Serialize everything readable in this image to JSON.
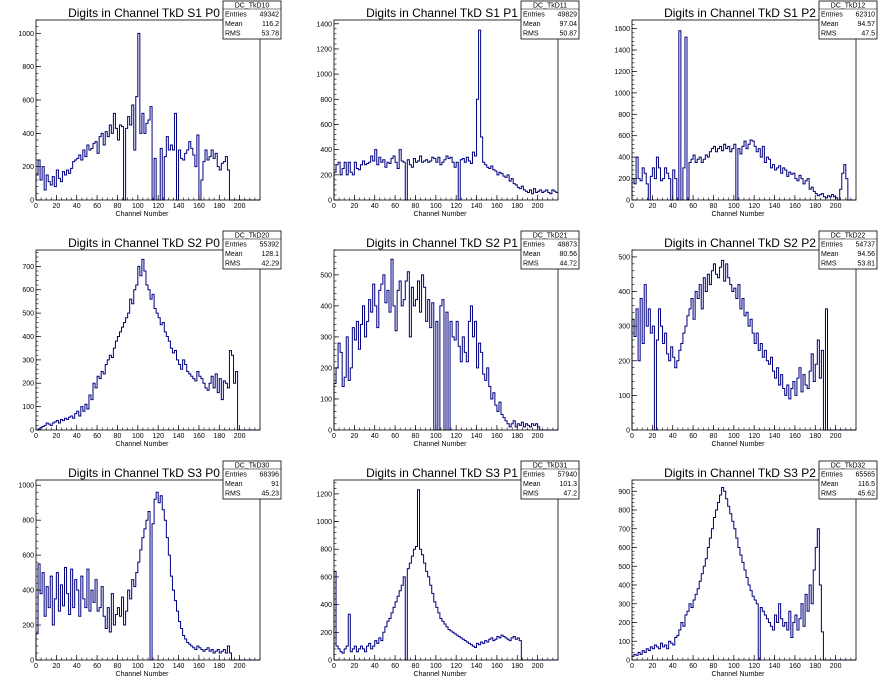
{
  "chart_data": [
    {
      "type": "histogram",
      "title": "Digits in Channel TkD S1 P0",
      "xlabel": "Channel Number",
      "xlim": [
        0,
        220
      ],
      "ylim": [
        0,
        1080
      ],
      "xticks": [
        0,
        20,
        40,
        60,
        80,
        100,
        120,
        140,
        160,
        180,
        200
      ],
      "yticks": [
        0,
        200,
        400,
        600,
        800,
        1000
      ],
      "stats": {
        "name": "DC_TkD10",
        "entries": "49342",
        "mean": "116.2",
        "rms": "53.78"
      },
      "bin_width": 2,
      "values": [
        150,
        240,
        120,
        200,
        60,
        150,
        110,
        90,
        140,
        80,
        180,
        130,
        110,
        170,
        150,
        180,
        160,
        190,
        230,
        240,
        250,
        270,
        240,
        300,
        260,
        330,
        300,
        310,
        340,
        350,
        280,
        380,
        400,
        330,
        410,
        380,
        450,
        400,
        520,
        430,
        360,
        450,
        440,
        0,
        430,
        500,
        450,
        570,
        300,
        620,
        1000,
        400,
        520,
        400,
        460,
        480,
        560,
        0,
        250,
        0,
        0,
        310,
        0,
        260,
        380,
        300,
        330,
        300,
        520,
        0,
        300,
        250,
        240,
        280,
        300,
        350,
        310,
        270,
        200,
        390,
        0,
        120,
        230,
        300,
        240,
        260,
        300,
        250,
        280,
        200,
        180,
        220,
        230,
        260,
        180,
        0,
        0,
        0,
        0,
        0,
        0,
        0,
        0,
        0,
        0,
        0,
        0,
        0,
        0,
        0
      ]
    },
    {
      "type": "histogram",
      "title": "Digits in Channel TkD S1 P1",
      "xlabel": "Channel Number",
      "xlim": [
        0,
        220
      ],
      "ylim": [
        0,
        1430
      ],
      "xticks": [
        0,
        20,
        40,
        60,
        80,
        100,
        120,
        140,
        160,
        180,
        200
      ],
      "yticks": [
        0,
        200,
        400,
        600,
        800,
        1000,
        1200,
        1400
      ],
      "stats": {
        "name": "DC_TkD11",
        "entries": "49829",
        "mean": "97.04",
        "rms": "50.87"
      },
      "bin_width": 2,
      "values": [
        220,
        280,
        300,
        200,
        250,
        300,
        200,
        300,
        220,
        200,
        300,
        250,
        240,
        280,
        310,
        280,
        290,
        300,
        350,
        310,
        400,
        280,
        340,
        300,
        320,
        260,
        300,
        290,
        330,
        350,
        300,
        250,
        400,
        310,
        300,
        0,
        320,
        280,
        260,
        330,
        300,
        310,
        350,
        300,
        310,
        320,
        300,
        310,
        340,
        330,
        300,
        340,
        280,
        300,
        320,
        350,
        330,
        340,
        300,
        260,
        300,
        0,
        320,
        330,
        300,
        340,
        310,
        290,
        380,
        350,
        800,
        1350,
        500,
        300,
        280,
        260,
        250,
        270,
        240,
        230,
        200,
        220,
        210,
        190,
        180,
        200,
        150,
        170,
        130,
        120,
        100,
        90,
        110,
        80,
        70,
        60,
        80,
        50,
        90,
        60,
        70,
        80,
        60,
        70,
        80,
        60,
        50,
        80,
        70,
        60
      ]
    },
    {
      "type": "histogram",
      "title": "Digits in Channel TkD S1 P2",
      "xlabel": "Channel Number",
      "xlim": [
        0,
        220
      ],
      "ylim": [
        0,
        1680
      ],
      "xticks": [
        0,
        20,
        40,
        60,
        80,
        100,
        120,
        140,
        160,
        180,
        200
      ],
      "yticks": [
        0,
        200,
        400,
        600,
        800,
        1000,
        1200,
        1400,
        1600
      ],
      "stats": {
        "name": "DC_TkD12",
        "entries": "62310",
        "mean": "94.57",
        "rms": "47.5"
      },
      "bin_width": 2,
      "values": [
        200,
        150,
        400,
        200,
        180,
        300,
        250,
        150,
        0,
        220,
        300,
        200,
        400,
        300,
        180,
        200,
        300,
        250,
        200,
        0,
        280,
        200,
        0,
        1580,
        0,
        300,
        1520,
        0,
        350,
        380,
        420,
        350,
        380,
        400,
        350,
        380,
        420,
        400,
        450,
        480,
        500,
        450,
        480,
        500,
        460,
        520,
        480,
        500,
        450,
        480,
        520,
        0,
        480,
        430,
        500,
        550,
        480,
        520,
        560,
        550,
        500,
        450,
        480,
        400,
        500,
        350,
        400,
        380,
        300,
        330,
        280,
        300,
        320,
        250,
        300,
        280,
        220,
        260,
        240,
        250,
        200,
        180,
        230,
        200,
        150,
        180,
        200,
        100,
        120,
        80,
        60,
        40,
        50,
        60,
        30,
        20,
        40,
        30,
        50,
        30,
        20,
        0,
        100,
        250,
        330,
        200,
        0,
        0,
        0,
        0
      ]
    },
    {
      "type": "histogram",
      "title": "Digits in Channel TkD S2 P0",
      "xlabel": "Channel Number",
      "xlim": [
        0,
        220
      ],
      "ylim": [
        0,
        770
      ],
      "xticks": [
        0,
        20,
        40,
        60,
        80,
        100,
        120,
        140,
        160,
        180,
        200
      ],
      "yticks": [
        0,
        100,
        200,
        300,
        400,
        500,
        600,
        700
      ],
      "stats": {
        "name": "DC_TkD20",
        "entries": "55392",
        "mean": "128.1",
        "rms": "42.29"
      },
      "bin_width": 2,
      "values": [
        0,
        5,
        10,
        15,
        20,
        30,
        25,
        20,
        30,
        35,
        40,
        30,
        45,
        40,
        50,
        45,
        55,
        60,
        50,
        70,
        80,
        60,
        100,
        80,
        110,
        90,
        150,
        130,
        200,
        180,
        230,
        220,
        250,
        240,
        280,
        300,
        320,
        310,
        350,
        380,
        400,
        420,
        440,
        460,
        480,
        500,
        560,
        540,
        600,
        620,
        700,
        660,
        730,
        680,
        620,
        600,
        560,
        580,
        520,
        500,
        480,
        450,
        460,
        420,
        400,
        380,
        350,
        330,
        340,
        300,
        280,
        260,
        300,
        280,
        250,
        240,
        230,
        220,
        210,
        250,
        230,
        220,
        200,
        180,
        170,
        200,
        230,
        180,
        240,
        160,
        220,
        130,
        210,
        200,
        180,
        340,
        320,
        200,
        250,
        0,
        0,
        0,
        0,
        0,
        0,
        0,
        0,
        0,
        0,
        0
      ]
    },
    {
      "type": "histogram",
      "title": "Digits in Channel TkD S2 P1",
      "xlabel": "Channel Number",
      "xlim": [
        0,
        220
      ],
      "ylim": [
        0,
        580
      ],
      "xticks": [
        0,
        20,
        40,
        60,
        80,
        100,
        120,
        140,
        160,
        180,
        200
      ],
      "yticks": [
        0,
        100,
        200,
        300,
        400,
        500
      ],
      "stats": {
        "name": "DC_TkD21",
        "entries": "48873",
        "mean": "80.56",
        "rms": "44.72"
      },
      "bin_width": 2,
      "values": [
        150,
        200,
        280,
        250,
        140,
        170,
        300,
        160,
        200,
        330,
        290,
        350,
        260,
        340,
        400,
        300,
        350,
        420,
        380,
        470,
        400,
        330,
        450,
        470,
        500,
        410,
        450,
        380,
        550,
        400,
        320,
        450,
        480,
        400,
        420,
        480,
        510,
        300,
        460,
        400,
        420,
        480,
        380,
        500,
        460,
        350,
        420,
        330,
        410,
        0,
        350,
        0,
        400,
        420,
        0,
        380,
        0,
        350,
        300,
        290,
        350,
        270,
        220,
        300,
        250,
        220,
        350,
        400,
        300,
        350,
        200,
        280,
        250,
        180,
        160,
        200,
        140,
        100,
        120,
        80,
        60,
        90,
        50,
        40,
        30,
        20,
        10,
        20,
        30,
        10,
        20,
        15,
        25,
        10,
        20,
        15,
        10,
        20,
        15,
        20,
        10,
        0,
        0,
        0,
        0,
        0,
        0,
        0,
        0,
        0
      ]
    },
    {
      "type": "histogram",
      "title": "Digits in Channel TkD S2 P2",
      "xlabel": "Channel Number",
      "xlim": [
        0,
        220
      ],
      "ylim": [
        0,
        520
      ],
      "xticks": [
        0,
        20,
        40,
        60,
        80,
        100,
        120,
        140,
        160,
        180,
        200
      ],
      "yticks": [
        0,
        100,
        200,
        300,
        400,
        500
      ],
      "stats": {
        "name": "DC_TkD22",
        "entries": "54737",
        "mean": "94.56",
        "rms": "53.81"
      },
      "bin_width": 2,
      "values": [
        320,
        270,
        350,
        200,
        380,
        250,
        420,
        300,
        350,
        280,
        300,
        0,
        260,
        350,
        300,
        250,
        280,
        220,
        200,
        240,
        210,
        180,
        200,
        230,
        250,
        280,
        300,
        330,
        350,
        380,
        320,
        400,
        380,
        420,
        350,
        440,
        400,
        450,
        420,
        460,
        480,
        450,
        440,
        470,
        490,
        430,
        480,
        440,
        420,
        400,
        410,
        380,
        420,
        350,
        380,
        330,
        340,
        300,
        320,
        280,
        250,
        280,
        230,
        250,
        210,
        230,
        200,
        190,
        210,
        170,
        150,
        180,
        130,
        160,
        120,
        100,
        130,
        90,
        120,
        140,
        100,
        150,
        180,
        110,
        160,
        130,
        120,
        170,
        220,
        140,
        190,
        260,
        150,
        230,
        0,
        350,
        0,
        0,
        0,
        0,
        0,
        0,
        0,
        0,
        0,
        0,
        0,
        0,
        0,
        0
      ]
    },
    {
      "type": "histogram",
      "title": "Digits in Channel TkD S3 P0",
      "xlabel": "Channel Number",
      "xlim": [
        0,
        220
      ],
      "ylim": [
        0,
        1030
      ],
      "xticks": [
        0,
        20,
        40,
        60,
        80,
        100,
        120,
        140,
        160,
        180,
        200
      ],
      "yticks": [
        0,
        200,
        400,
        600,
        800,
        1000
      ],
      "stats": {
        "name": "DC_TkD30",
        "entries": "68396",
        "mean": "91",
        "rms": "45.23"
      },
      "bin_width": 2,
      "values": [
        150,
        550,
        380,
        500,
        250,
        420,
        300,
        480,
        200,
        350,
        500,
        280,
        430,
        310,
        530,
        380,
        260,
        520,
        300,
        460,
        400,
        250,
        480,
        350,
        300,
        520,
        280,
        400,
        330,
        460,
        280,
        300,
        420,
        250,
        180,
        300,
        160,
        380,
        200,
        260,
        300,
        250,
        360,
        200,
        280,
        400,
        350,
        460,
        420,
        500,
        560,
        630,
        700,
        750,
        800,
        850,
        0,
        780,
        920,
        960,
        900,
        940,
        860,
        800,
        700,
        600,
        480,
        400,
        340,
        280,
        220,
        180,
        140,
        120,
        100,
        90,
        80,
        70,
        60,
        80,
        70,
        60,
        50,
        60,
        70,
        50,
        60,
        40,
        50,
        60,
        40,
        50,
        60,
        40,
        80,
        40,
        0,
        0,
        0,
        0,
        0,
        0,
        0,
        0,
        0,
        0,
        0,
        0,
        0,
        0
      ]
    },
    {
      "type": "histogram",
      "title": "Digits in Channel TkD S3 P1",
      "xlabel": "Channel Number",
      "xlim": [
        0,
        220
      ],
      "ylim": [
        0,
        1300
      ],
      "xticks": [
        0,
        20,
        40,
        60,
        80,
        100,
        120,
        140,
        160,
        180,
        200
      ],
      "yticks": [
        0,
        200,
        400,
        600,
        800,
        1000,
        1200
      ],
      "stats": {
        "name": "DC_TkD31",
        "entries": "57940",
        "mean": "101.3",
        "rms": "47.2"
      },
      "bin_width": 2,
      "values": [
        640,
        100,
        80,
        60,
        50,
        80,
        100,
        330,
        60,
        80,
        100,
        60,
        80,
        100,
        80,
        60,
        100,
        120,
        80,
        100,
        140,
        120,
        160,
        140,
        200,
        240,
        280,
        300,
        340,
        380,
        420,
        460,
        500,
        540,
        600,
        0,
        660,
        700,
        750,
        800,
        820,
        1230,
        800,
        760,
        700,
        640,
        600,
        540,
        480,
        420,
        380,
        340,
        300,
        280,
        260,
        240,
        220,
        210,
        200,
        190,
        180,
        170,
        160,
        150,
        140,
        130,
        120,
        110,
        100,
        90,
        120,
        110,
        130,
        120,
        140,
        130,
        150,
        160,
        140,
        150,
        170,
        160,
        180,
        170,
        160,
        150,
        140,
        160,
        170,
        150,
        160,
        140,
        0,
        0,
        0,
        0,
        0,
        0,
        0,
        0,
        0,
        0,
        0,
        0,
        0,
        0,
        0,
        0,
        0,
        0
      ]
    },
    {
      "type": "histogram",
      "title": "Digits in Channel TkD S3 P2",
      "xlabel": "Channel Number",
      "xlim": [
        0,
        220
      ],
      "ylim": [
        0,
        960
      ],
      "xticks": [
        0,
        20,
        40,
        60,
        80,
        100,
        120,
        140,
        160,
        180,
        200
      ],
      "yticks": [
        0,
        100,
        200,
        300,
        400,
        500,
        600,
        700,
        800,
        900
      ],
      "stats": {
        "name": "DC_TkD32",
        "entries": "65565",
        "mean": "116.5",
        "rms": "45.62"
      },
      "bin_width": 2,
      "values": [
        20,
        30,
        25,
        40,
        30,
        50,
        40,
        60,
        50,
        70,
        60,
        80,
        70,
        60,
        90,
        70,
        80,
        60,
        100,
        90,
        80,
        120,
        130,
        160,
        200,
        180,
        240,
        260,
        300,
        280,
        320,
        350,
        380,
        420,
        460,
        500,
        540,
        600,
        650,
        700,
        760,
        800,
        840,
        880,
        920,
        900,
        860,
        820,
        780,
        740,
        700,
        650,
        600,
        560,
        520,
        480,
        440,
        400,
        370,
        340,
        320,
        300,
        0,
        280,
        260,
        240,
        220,
        200,
        180,
        160,
        240,
        200,
        300,
        220,
        180,
        200,
        160,
        260,
        120,
        200,
        240,
        160,
        220,
        300,
        180,
        350,
        260,
        400,
        300,
        480,
        600,
        700,
        400,
        150,
        0,
        0,
        0,
        0,
        0,
        0,
        0,
        0,
        0,
        0,
        0,
        0,
        0,
        0,
        0,
        0
      ]
    }
  ]
}
